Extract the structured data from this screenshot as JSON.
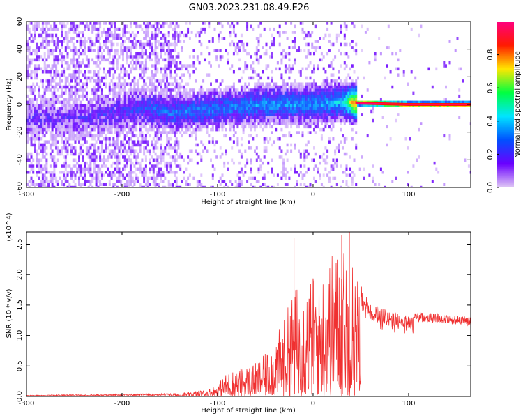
{
  "title": "GN03.2023.231.08.49.E26",
  "chart_data": [
    {
      "type": "heatmap",
      "title": "GN03.2023.231.08.49.E26",
      "xlabel": "Height of straight line (km)",
      "ylabel": "Frequency (Hz)",
      "xlim": [
        -300,
        165
      ],
      "ylim": [
        -60,
        60
      ],
      "xticks": [
        "-300",
        "-200",
        "-100",
        "0",
        "100"
      ],
      "yticks": [
        "60",
        "40",
        "20",
        "0",
        "-20",
        "-40",
        "-60"
      ],
      "colorbar": {
        "label": "Normalized spectral amplitude",
        "range": [
          0,
          1
        ],
        "ticks": [
          "0.0",
          "0.2",
          "0.4",
          "0.6",
          "0.8"
        ],
        "colormap": [
          "#e0c8f5",
          "#6a00ff",
          "#0050ff",
          "#00e5ff",
          "#00ff40",
          "#ffe600",
          "#ff1a00",
          "#ff0080"
        ]
      },
      "ridge": [
        {
          "x": -300,
          "f": -10,
          "amp": 0.15
        },
        {
          "x": -250,
          "f": -10,
          "amp": 0.15
        },
        {
          "x": -200,
          "f": -5,
          "amp": 0.2
        },
        {
          "x": -180,
          "f": -2,
          "amp": 0.25
        },
        {
          "x": -150,
          "f": -6,
          "amp": 0.3
        },
        {
          "x": -100,
          "f": -3,
          "amp": 0.3
        },
        {
          "x": -50,
          "f": 0,
          "amp": 0.35
        },
        {
          "x": 0,
          "f": 0,
          "amp": 0.35
        },
        {
          "x": 30,
          "f": 2,
          "amp": 0.4
        },
        {
          "x": 45,
          "f": 1,
          "amp": 0.9
        },
        {
          "x": 100,
          "f": 0,
          "amp": 0.9
        },
        {
          "x": 165,
          "f": 0,
          "amp": 0.9
        }
      ]
    },
    {
      "type": "area",
      "xlabel": "Height of straight line (km)",
      "ylabel": "SNR (10 * v/v)",
      "y_multiplier": "(x10^4)",
      "xlim": [
        -300,
        165
      ],
      "ylim": [
        0,
        2.7
      ],
      "xticks": [
        "-300",
        "-200",
        "-100",
        "0",
        "100"
      ],
      "yticks": [
        "0.0",
        "0.5",
        "1.0",
        "1.5",
        "2.0",
        "2.5"
      ],
      "color": "#f03030",
      "envelope": [
        {
          "x": -300,
          "y": 0.02
        },
        {
          "x": -250,
          "y": 0.03
        },
        {
          "x": -200,
          "y": 0.04
        },
        {
          "x": -150,
          "y": 0.05
        },
        {
          "x": -130,
          "y": 0.07
        },
        {
          "x": -110,
          "y": 0.12
        },
        {
          "x": -100,
          "y": 0.2
        },
        {
          "x": -90,
          "y": 0.4
        },
        {
          "x": -80,
          "y": 0.45
        },
        {
          "x": -70,
          "y": 0.5
        },
        {
          "x": -60,
          "y": 0.55
        },
        {
          "x": -50,
          "y": 0.7
        },
        {
          "x": -40,
          "y": 1.0
        },
        {
          "x": -30,
          "y": 1.3
        },
        {
          "x": -20,
          "y": 1.8
        },
        {
          "x": -10,
          "y": 1.9
        },
        {
          "x": 0,
          "y": 2.0
        },
        {
          "x": 10,
          "y": 2.1
        },
        {
          "x": 20,
          "y": 2.4
        },
        {
          "x": 30,
          "y": 2.5
        },
        {
          "x": 40,
          "y": 2.4
        },
        {
          "x": 50,
          "y": 1.8
        },
        {
          "x": 60,
          "y": 1.5
        },
        {
          "x": 70,
          "y": 1.45
        },
        {
          "x": 80,
          "y": 1.4
        },
        {
          "x": 90,
          "y": 1.35
        },
        {
          "x": 100,
          "y": 1.35
        },
        {
          "x": 110,
          "y": 1.33
        },
        {
          "x": 130,
          "y": 1.31
        },
        {
          "x": 150,
          "y": 1.28
        },
        {
          "x": 165,
          "y": 1.25
        }
      ],
      "spikes": [
        {
          "x": -20,
          "y": 2.6
        },
        {
          "x": 30,
          "y": 2.65
        },
        {
          "x": 38,
          "y": 2.7
        }
      ]
    }
  ]
}
